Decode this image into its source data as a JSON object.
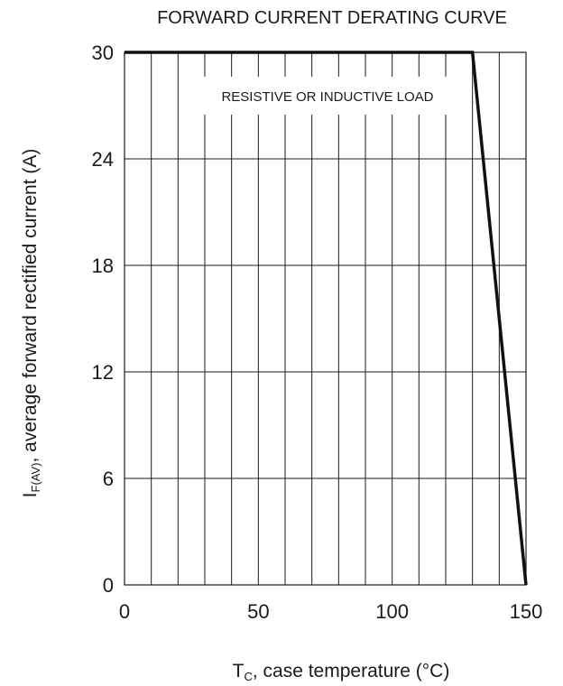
{
  "chart_data": {
    "type": "line",
    "title": "FORWARD CURRENT DERATING CURVE",
    "annotation": "RESISTIVE OR INDUCTIVE LOAD",
    "xlabel": {
      "main": "T",
      "sub": "C",
      "rest": ", case temperature (°C)"
    },
    "ylabel": {
      "main": "I",
      "sub": "F(AV)",
      "rest": ",  average forward rectified current (A)"
    },
    "xlim": [
      0,
      150
    ],
    "ylim": [
      0,
      30
    ],
    "xticks": [
      0,
      50,
      100,
      150
    ],
    "yticks": [
      0,
      6,
      12,
      18,
      24,
      30
    ],
    "x_minor_grid_step": 10,
    "grid": true,
    "series": [
      {
        "x": [
          0,
          130,
          150
        ],
        "y": [
          30,
          30,
          0
        ]
      }
    ]
  }
}
